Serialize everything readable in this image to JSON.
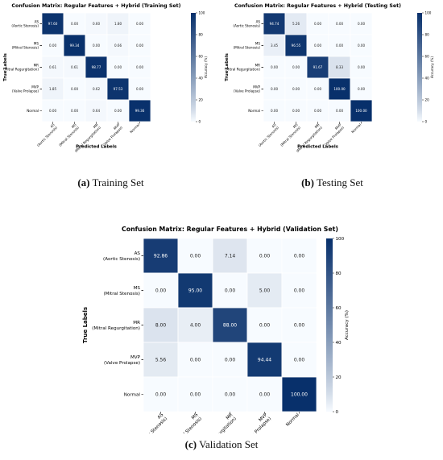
{
  "chart_data": [
    {
      "type": "heatmap",
      "title": "Confusion Matrix: Regular Features + Hybrid (Training Set)",
      "xlabel": "Predicted Labels",
      "ylabel": "True Labels",
      "row_labels": [
        [
          "AS",
          "(Aortic Stenosis)"
        ],
        [
          "MS",
          "(Mitral Stenosis)"
        ],
        [
          "MR",
          "(Mitral Regurgitation)"
        ],
        [
          "MVP",
          "(Valve Prolapse)"
        ],
        [
          "Normal"
        ]
      ],
      "col_labels": [
        [
          "AS",
          "(Aortic Stenosis)"
        ],
        [
          "MS",
          "(Mitral Stenosis)"
        ],
        [
          "MR",
          "(Mitral Regurgitation)"
        ],
        [
          "MVP",
          "(Valve Prolapse)"
        ],
        [
          "Normal"
        ]
      ],
      "values": [
        [
          97.6,
          0.0,
          0.6,
          1.8,
          0.0
        ],
        [
          0.0,
          99.34,
          0.0,
          0.66,
          0.0
        ],
        [
          0.61,
          0.61,
          98.77,
          0.0,
          0.0
        ],
        [
          1.85,
          0.0,
          0.62,
          97.53,
          0.0
        ],
        [
          0.0,
          0.0,
          0.64,
          0.0,
          99.36
        ]
      ],
      "value_labels": [
        [
          "97.60",
          "0.00",
          "0.60",
          "1.80",
          "0.00"
        ],
        [
          "0.00",
          "99.34",
          "0.00",
          "0.66",
          "0.00"
        ],
        [
          "0.61",
          "0.61",
          "98.77",
          "0.00",
          "0.00"
        ],
        [
          "1.85",
          "0.00",
          "0.62",
          "97.53",
          "0.00"
        ],
        [
          "0.00",
          "0.00",
          "0.64",
          "0.00",
          "99.36"
        ]
      ],
      "colorbar": {
        "label": "Accuracy (%)",
        "range": [
          0,
          100
        ],
        "ticks": [
          "100",
          "80",
          "60",
          "40",
          "20",
          "0"
        ]
      },
      "colormap": {
        "low": "#f7fbff",
        "high": "#08306b"
      },
      "caption_letter": "(a)",
      "caption_text": "Training Set"
    },
    {
      "type": "heatmap",
      "title": "Confusion Matrix: Regular Features + Hybrid (Testing Set)",
      "xlabel": "Predicted Labels",
      "ylabel": "True Labels",
      "row_labels": [
        [
          "AS",
          "(Aortic Stenosis)"
        ],
        [
          "MS",
          "(Mitral Stenosis)"
        ],
        [
          "MR",
          "(Mitral Regurgitation)"
        ],
        [
          "MVP",
          "(Valve Prolapse)"
        ],
        [
          "Normal"
        ]
      ],
      "col_labels": [
        [
          "AS",
          "(Aortic Stenosis)"
        ],
        [
          "MS",
          "(Mitral Stenosis)"
        ],
        [
          "MR",
          "(Mitral Regurgitation)"
        ],
        [
          "MVP",
          "(Valve Prolapse)"
        ],
        [
          "Normal"
        ]
      ],
      "values": [
        [
          94.74,
          5.26,
          0.0,
          0.0,
          0.0
        ],
        [
          3.45,
          96.55,
          0.0,
          0.0,
          0.0
        ],
        [
          0.0,
          0.0,
          91.67,
          8.33,
          0.0
        ],
        [
          0.0,
          0.0,
          0.0,
          100.0,
          0.0
        ],
        [
          0.0,
          0.0,
          0.0,
          0.0,
          100.0
        ]
      ],
      "value_labels": [
        [
          "94.74",
          "5.26",
          "0.00",
          "0.00",
          "0.00"
        ],
        [
          "3.45",
          "96.55",
          "0.00",
          "0.00",
          "0.00"
        ],
        [
          "0.00",
          "0.00",
          "91.67",
          "8.33",
          "0.00"
        ],
        [
          "0.00",
          "0.00",
          "0.00",
          "100.00",
          "0.00"
        ],
        [
          "0.00",
          "0.00",
          "0.00",
          "0.00",
          "100.00"
        ]
      ],
      "colorbar": {
        "label": "Accuracy (%)",
        "range": [
          0,
          100
        ],
        "ticks": [
          "100",
          "80",
          "60",
          "40",
          "20",
          "0"
        ]
      },
      "colormap": {
        "low": "#f7fbff",
        "high": "#08306b"
      },
      "caption_letter": "(b)",
      "caption_text": "Testing Set"
    },
    {
      "type": "heatmap",
      "title": "Confusion Matrix: Regular Features + Hybrid (Validation Set)",
      "xlabel": "Predicted Labels",
      "ylabel": "True Labels",
      "row_labels": [
        [
          "AS",
          "(Aortic Stenosis)"
        ],
        [
          "MS",
          "(Mitral Stenosis)"
        ],
        [
          "MR",
          "(Mitral Regurgitation)"
        ],
        [
          "MVP",
          "(Valve Prolapse)"
        ],
        [
          "Normal"
        ]
      ],
      "col_labels": [
        [
          "AS",
          "(Aortic Stenosis)"
        ],
        [
          "MS",
          "(Mitral Stenosis)"
        ],
        [
          "MR",
          "(Mitral Regurgitation)"
        ],
        [
          "MVP",
          "(Valve Prolapse)"
        ],
        [
          "Normal"
        ]
      ],
      "values": [
        [
          92.86,
          0.0,
          7.14,
          0.0,
          0.0
        ],
        [
          0.0,
          95.0,
          0.0,
          5.0,
          0.0
        ],
        [
          8.0,
          4.0,
          88.0,
          0.0,
          0.0
        ],
        [
          5.56,
          0.0,
          0.0,
          94.44,
          0.0
        ],
        [
          0.0,
          0.0,
          0.0,
          0.0,
          100.0
        ]
      ],
      "value_labels": [
        [
          "92.86",
          "0.00",
          "7.14",
          "0.00",
          "0.00"
        ],
        [
          "0.00",
          "95.00",
          "0.00",
          "5.00",
          "0.00"
        ],
        [
          "8.00",
          "4.00",
          "88.00",
          "0.00",
          "0.00"
        ],
        [
          "5.56",
          "0.00",
          "0.00",
          "94.44",
          "0.00"
        ],
        [
          "0.00",
          "0.00",
          "0.00",
          "0.00",
          "100.00"
        ]
      ],
      "colorbar": {
        "label": "Accuracy (%)",
        "range": [
          0,
          100
        ],
        "ticks": [
          "100",
          "80",
          "60",
          "40",
          "20",
          "0"
        ]
      },
      "colormap": {
        "low": "#f7fbff",
        "high": "#08306b"
      },
      "caption_letter": "(c)",
      "caption_text": "Validation Set"
    }
  ]
}
